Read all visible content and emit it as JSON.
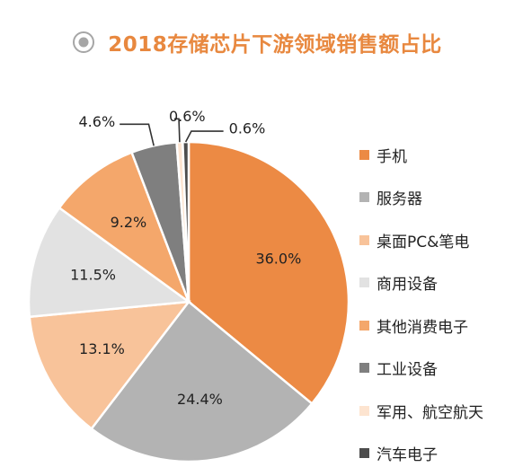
{
  "chart_data": {
    "type": "pie",
    "title": "2018存储芯片下游领域销售额占比",
    "categories": [
      "手机",
      "服务器",
      "桌面PC&笔电",
      "商用设备",
      "其他消费电子",
      "工业设备",
      "军用、航空航天",
      "汽车电子"
    ],
    "values": [
      36.0,
      24.4,
      13.1,
      11.5,
      9.2,
      4.6,
      0.6,
      0.6
    ],
    "value_labels": [
      "36.0%",
      "24.4%",
      "13.1%",
      "11.5%",
      "9.2%",
      "4.6%",
      "0.6%",
      "0.6%"
    ],
    "colors": [
      "#ec8a44",
      "#b3b3b3",
      "#f8c39a",
      "#e2e2e2",
      "#f4a76b",
      "#7f7f7f",
      "#fde4d0",
      "#4d4d4d"
    ],
    "legend_position": "right",
    "start_angle_deg": 0,
    "direction": "clockwise"
  }
}
